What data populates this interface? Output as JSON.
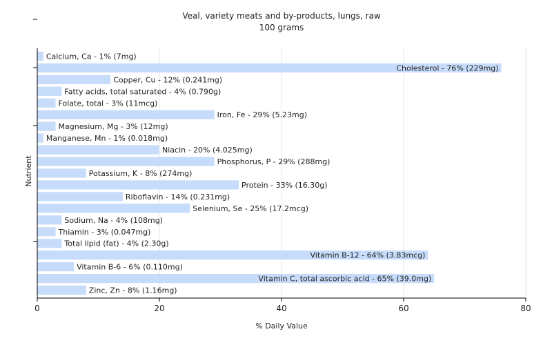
{
  "chart_data": {
    "type": "bar",
    "orientation": "horizontal",
    "title": "Veal, variety meats and by-products, lungs, raw",
    "subtitle": "100 grams",
    "xlabel": "% Daily Value",
    "ylabel": "Nutrient",
    "xlim": [
      0,
      80
    ],
    "xticks": [
      0,
      20,
      40,
      60,
      80
    ],
    "grid": true,
    "bar_color": "#c6dcfa",
    "categories": [
      "Calcium, Ca",
      "Cholesterol",
      "Copper, Cu",
      "Fatty acids, total saturated",
      "Folate, total",
      "Iron, Fe",
      "Magnesium, Mg",
      "Manganese, Mn",
      "Niacin",
      "Phosphorus, P",
      "Potassium, K",
      "Protein",
      "Riboflavin",
      "Selenium, Se",
      "Sodium, Na",
      "Thiamin",
      "Total lipid (fat)",
      "Vitamin B-12",
      "Vitamin B-6",
      "Vitamin C, total ascorbic acid",
      "Zinc, Zn"
    ],
    "values": [
      1,
      76,
      12,
      4,
      3,
      29,
      3,
      1,
      20,
      29,
      8,
      33,
      14,
      25,
      4,
      3,
      4,
      64,
      6,
      65,
      8
    ],
    "labels": [
      "Calcium, Ca - 1% (7mg)",
      "Cholesterol - 76% (229mg)",
      "Copper, Cu - 12% (0.241mg)",
      "Fatty acids, total saturated - 4% (0.790g)",
      "Folate, total - 3% (11mcg)",
      "Iron, Fe - 29% (5.23mg)",
      "Magnesium, Mg - 3% (12mg)",
      "Manganese, Mn - 1% (0.018mg)",
      "Niacin - 20% (4.025mg)",
      "Phosphorus, P - 29% (288mg)",
      "Potassium, K - 8% (274mg)",
      "Protein - 33% (16.30g)",
      "Riboflavin - 14% (0.231mg)",
      "Selenium, Se - 25% (17.2mcg)",
      "Sodium, Na - 4% (108mg)",
      "Thiamin - 3% (0.047mg)",
      "Total lipid (fat) - 4% (2.30g)",
      "Vitamin B-12 - 64% (3.83mcg)",
      "Vitamin B-6 - 6% (0.110mg)",
      "Vitamin C, total ascorbic acid - 65% (39.0mg)",
      "Zinc, Zn - 8% (1.16mg)"
    ]
  }
}
